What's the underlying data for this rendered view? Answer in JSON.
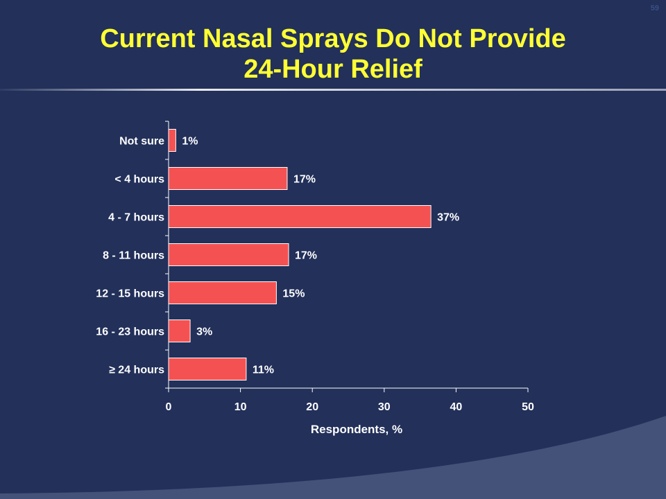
{
  "page": {
    "title_line1": "Current Nasal Sprays Do Not Provide",
    "title_line2": "24-Hour Relief",
    "page_number": "59"
  },
  "colors": {
    "background": "#22305a",
    "title": "#ffff33",
    "bar_fill": "#f45252",
    "bar_stroke": "#ffffff",
    "text": "#ffffff",
    "swoosh": "#44527a"
  },
  "chart_data": {
    "type": "bar",
    "orientation": "horizontal",
    "title": "Current Nasal Sprays Do Not Provide 24-Hour Relief",
    "xlabel": "Respondents, %",
    "ylabel": "",
    "categories": [
      "Not sure",
      "< 4 hours",
      "4 - 7 hours",
      "8 - 11 hours",
      "12 - 15 hours",
      "16 - 23 hours",
      "≥ 24 hours"
    ],
    "values": [
      1,
      16.5,
      36.5,
      16.7,
      15,
      3,
      10.8
    ],
    "data_labels": [
      "1%",
      "17%",
      "37%",
      "17%",
      "15%",
      "3%",
      "11%"
    ],
    "xlim": [
      0,
      50
    ],
    "xticks": [
      0,
      10,
      20,
      30,
      40,
      50
    ],
    "grid": false,
    "legend": "none"
  }
}
